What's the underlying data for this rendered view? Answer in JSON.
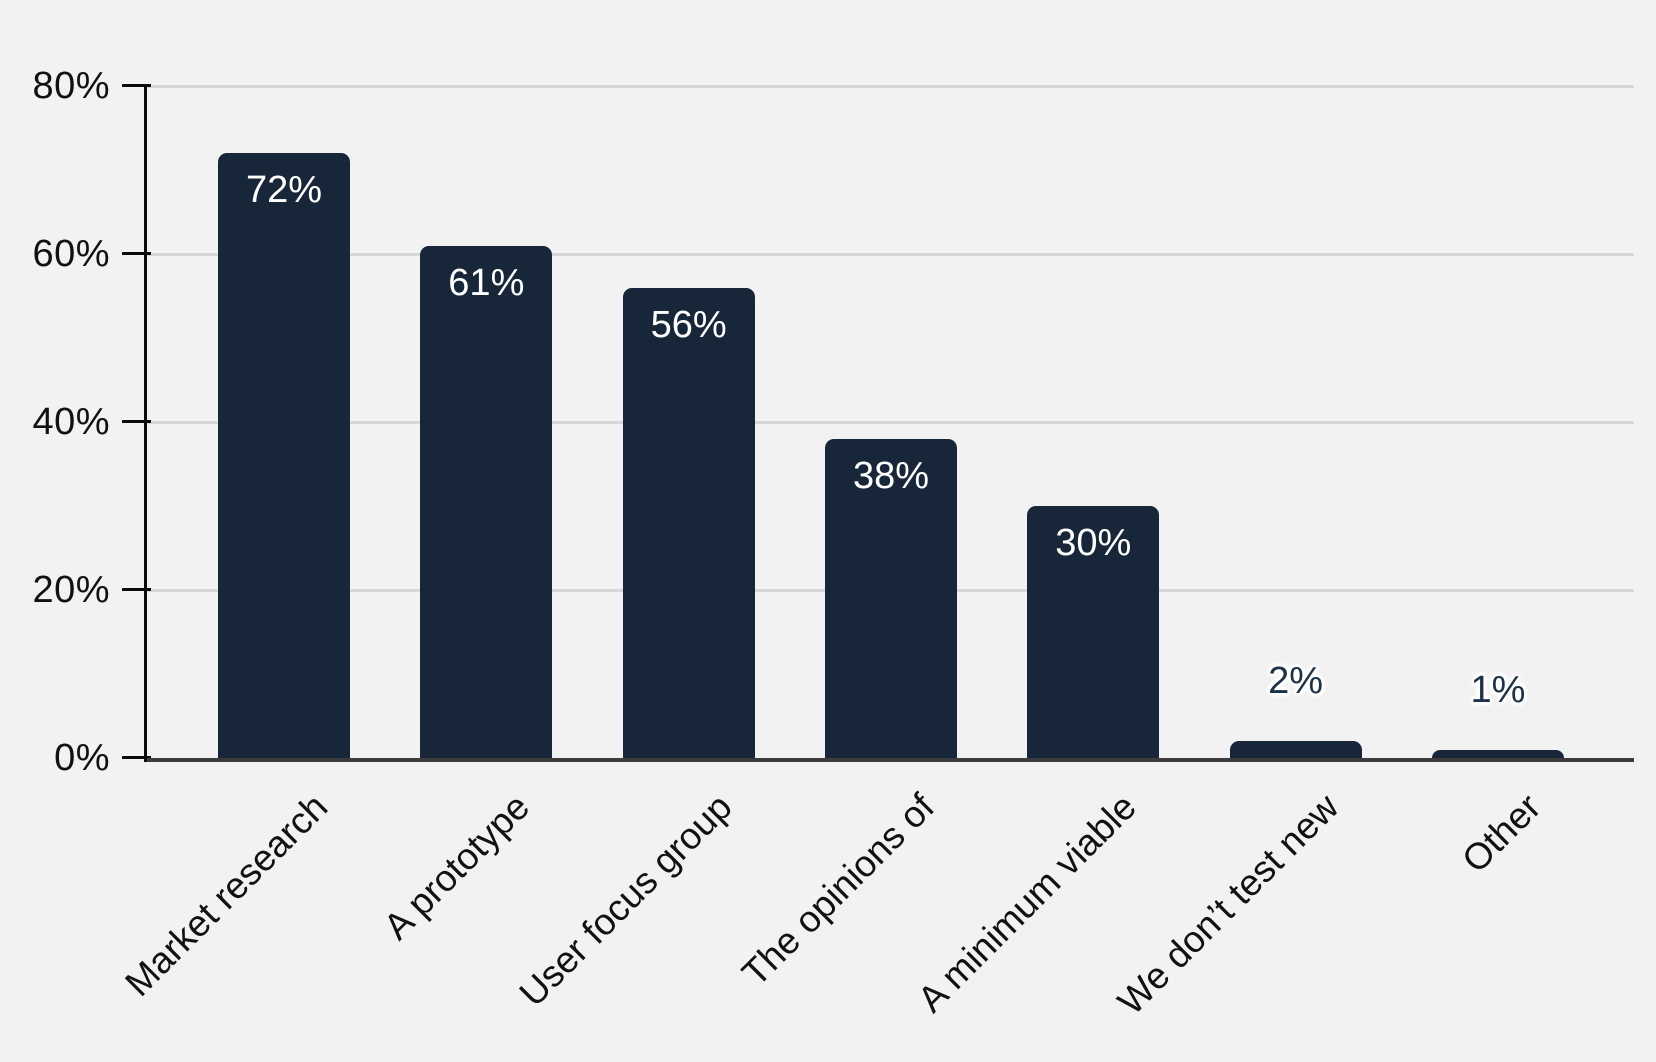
{
  "chart_data": {
    "type": "bar",
    "title": "",
    "xlabel": "",
    "ylabel": "",
    "categories": [
      "Market research",
      "A prototype",
      "User focus group",
      "The opinions of",
      "A minimum viable",
      "We don’t test new",
      "Other"
    ],
    "values": [
      72,
      61,
      56,
      38,
      30,
      2,
      1
    ],
    "value_labels": [
      "72%",
      "61%",
      "56%",
      "38%",
      "30%",
      "2%",
      "1%"
    ],
    "value_label_placement": [
      "inside",
      "inside",
      "inside",
      "inside",
      "inside",
      "outside",
      "outside"
    ],
    "ylim": [
      0,
      80
    ],
    "ytick_values": [
      0,
      20,
      40,
      60,
      80
    ],
    "ytick_labels": [
      "0%",
      "20%",
      "40%",
      "60%",
      "80%"
    ],
    "grid": true,
    "legend": false,
    "category_label_rotation_deg": -45,
    "colors": {
      "bar": "#172639",
      "background": "#f2f2f2",
      "gridline": "#d7d7d7",
      "baseline": "#3d3d3d",
      "axis": "#0b0b0b",
      "tick_label": "#111111",
      "category_label": "#111111",
      "value_label_inside": "#ffffff",
      "value_label_outside": "#1d3247",
      "value_label_halo": "#ffffff"
    }
  }
}
